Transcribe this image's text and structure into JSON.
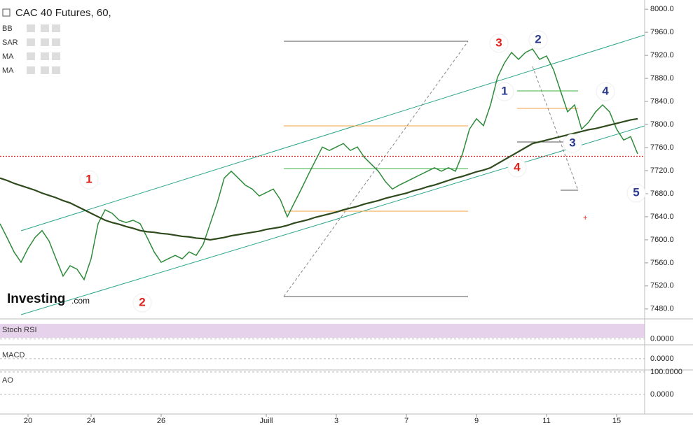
{
  "chart_data": {
    "type": "line",
    "title": "CAC 40 Futures, 60,",
    "indicators": [
      "BB",
      "SAR",
      "MA",
      "MA"
    ],
    "watermark": {
      "brand": "Investing",
      "suffix": ".com"
    },
    "categories": [
      null,
      null,
      null,
      null,
      "20",
      null,
      null,
      null,
      null,
      null,
      null,
      null,
      null,
      "24",
      null,
      null,
      null,
      null,
      null,
      null,
      null,
      null,
      null,
      "26",
      null,
      null,
      null,
      null,
      null,
      null,
      null,
      null,
      null,
      null,
      null,
      null,
      null,
      null,
      "Juill",
      null,
      null,
      null,
      null,
      null,
      null,
      null,
      null,
      null,
      "3",
      null,
      null,
      null,
      null,
      null,
      null,
      null,
      null,
      null,
      "7",
      null,
      null,
      null,
      null,
      null,
      null,
      null,
      null,
      null,
      "9",
      null,
      null,
      null,
      null,
      null,
      null,
      null,
      null,
      null,
      "11",
      null,
      null,
      null,
      null,
      null,
      null,
      null,
      null,
      null,
      "15",
      null,
      null,
      null
    ],
    "series": [
      {
        "name": "Price",
        "color": "#2e8b3a",
        "values": [
          7628,
          7604,
          7579,
          7561,
          7585,
          7604,
          7616,
          7598,
          7567,
          7537,
          7555,
          7549,
          7531,
          7567,
          7628,
          7652,
          7646,
          7634,
          7630,
          7634,
          7628,
          7604,
          7579,
          7561,
          7567,
          7573,
          7567,
          7579,
          7573,
          7592,
          7628,
          7664,
          7707,
          7719,
          7707,
          7695,
          7688,
          7676,
          7682,
          7688,
          7670,
          7640,
          7664,
          7688,
          7713,
          7737,
          7761,
          7755,
          7761,
          7767,
          7755,
          7761,
          7743,
          7731,
          7719,
          7701,
          7688,
          7695,
          7701,
          7707,
          7713,
          7719,
          7725,
          7719,
          7725,
          7719,
          7749,
          7792,
          7810,
          7798,
          7834,
          7882,
          7907,
          7925,
          7913,
          7925,
          7931,
          7913,
          7919,
          7895,
          7858,
          7822,
          7834,
          7792,
          7804,
          7822,
          7834,
          7822,
          7792,
          7773,
          7779,
          7749
        ]
      },
      {
        "name": "MA",
        "color": "#2f4a1c",
        "values": [
          7707,
          7703,
          7698,
          7694,
          7690,
          7686,
          7681,
          7677,
          7673,
          7668,
          7664,
          7658,
          7652,
          7646,
          7640,
          7634,
          7630,
          7627,
          7623,
          7620,
          7616,
          7614,
          7613,
          7611,
          7610,
          7608,
          7606,
          7605,
          7603,
          7602,
          7600,
          7602,
          7604,
          7607,
          7609,
          7611,
          7613,
          7615,
          7618,
          7620,
          7622,
          7625,
          7629,
          7632,
          7635,
          7639,
          7642,
          7645,
          7648,
          7652,
          7655,
          7658,
          7662,
          7665,
          7668,
          7672,
          7675,
          7678,
          7681,
          7685,
          7688,
          7692,
          7695,
          7699,
          7703,
          7707,
          7710,
          7714,
          7718,
          7721,
          7725,
          7732,
          7739,
          7746,
          7753,
          7760,
          7767,
          7770,
          7773,
          7776,
          7779,
          7782,
          7785,
          7788,
          7791,
          7793,
          7796,
          7799,
          7802,
          7805,
          7808,
          7810
        ]
      }
    ],
    "last_price": 7745,
    "ylim": [
      7464,
      8016
    ],
    "yticks": [
      {
        "value": 8000,
        "label": "8000.0"
      },
      {
        "value": 7960,
        "label": "7960.0"
      },
      {
        "value": 7920,
        "label": "7920.0"
      },
      {
        "value": 7880,
        "label": "7880.0"
      },
      {
        "value": 7840,
        "label": "7840.0"
      },
      {
        "value": 7800,
        "label": "7800.0"
      },
      {
        "value": 7760,
        "label": "7760.0"
      },
      {
        "value": 7720,
        "label": "7720.0"
      },
      {
        "value": 7680,
        "label": "7680.0"
      },
      {
        "value": 7640,
        "label": "7640.0"
      },
      {
        "value": 7600,
        "label": "7600.0"
      },
      {
        "value": 7560,
        "label": "7560.0"
      },
      {
        "value": 7520,
        "label": "7520.0"
      },
      {
        "value": 7480,
        "label": "7480.0"
      }
    ],
    "annotations": [
      {
        "text": "1",
        "color": "#e0201b"
      },
      {
        "text": "2",
        "color": "#e0201b"
      },
      {
        "text": "3",
        "color": "#e0201b"
      },
      {
        "text": "4",
        "color": "#e0201b"
      },
      {
        "text": "1",
        "color": "#2b3a8f"
      },
      {
        "text": "2",
        "color": "#2b3a8f"
      },
      {
        "text": "3",
        "color": "#2b3a8f"
      },
      {
        "text": "4",
        "color": "#2b3a8f"
      },
      {
        "text": "5",
        "color": "#2b3a8f"
      }
    ],
    "panes": [
      {
        "name": "Stoch RSI",
        "ylim": [
          -30,
          110
        ],
        "yticks": [
          {
            "value": 0,
            "label": "0.0000"
          }
        ]
      },
      {
        "name": "MACD",
        "ylim": [
          -16,
          20
        ],
        "yticks": [
          {
            "value": 0,
            "label": "0.0000"
          }
        ]
      },
      {
        "name": "AO",
        "ylim": [
          -87,
          106
        ],
        "yticks": [
          {
            "value": 100,
            "label": "100.0000"
          },
          {
            "value": 0,
            "label": "0.0000"
          }
        ]
      }
    ]
  }
}
